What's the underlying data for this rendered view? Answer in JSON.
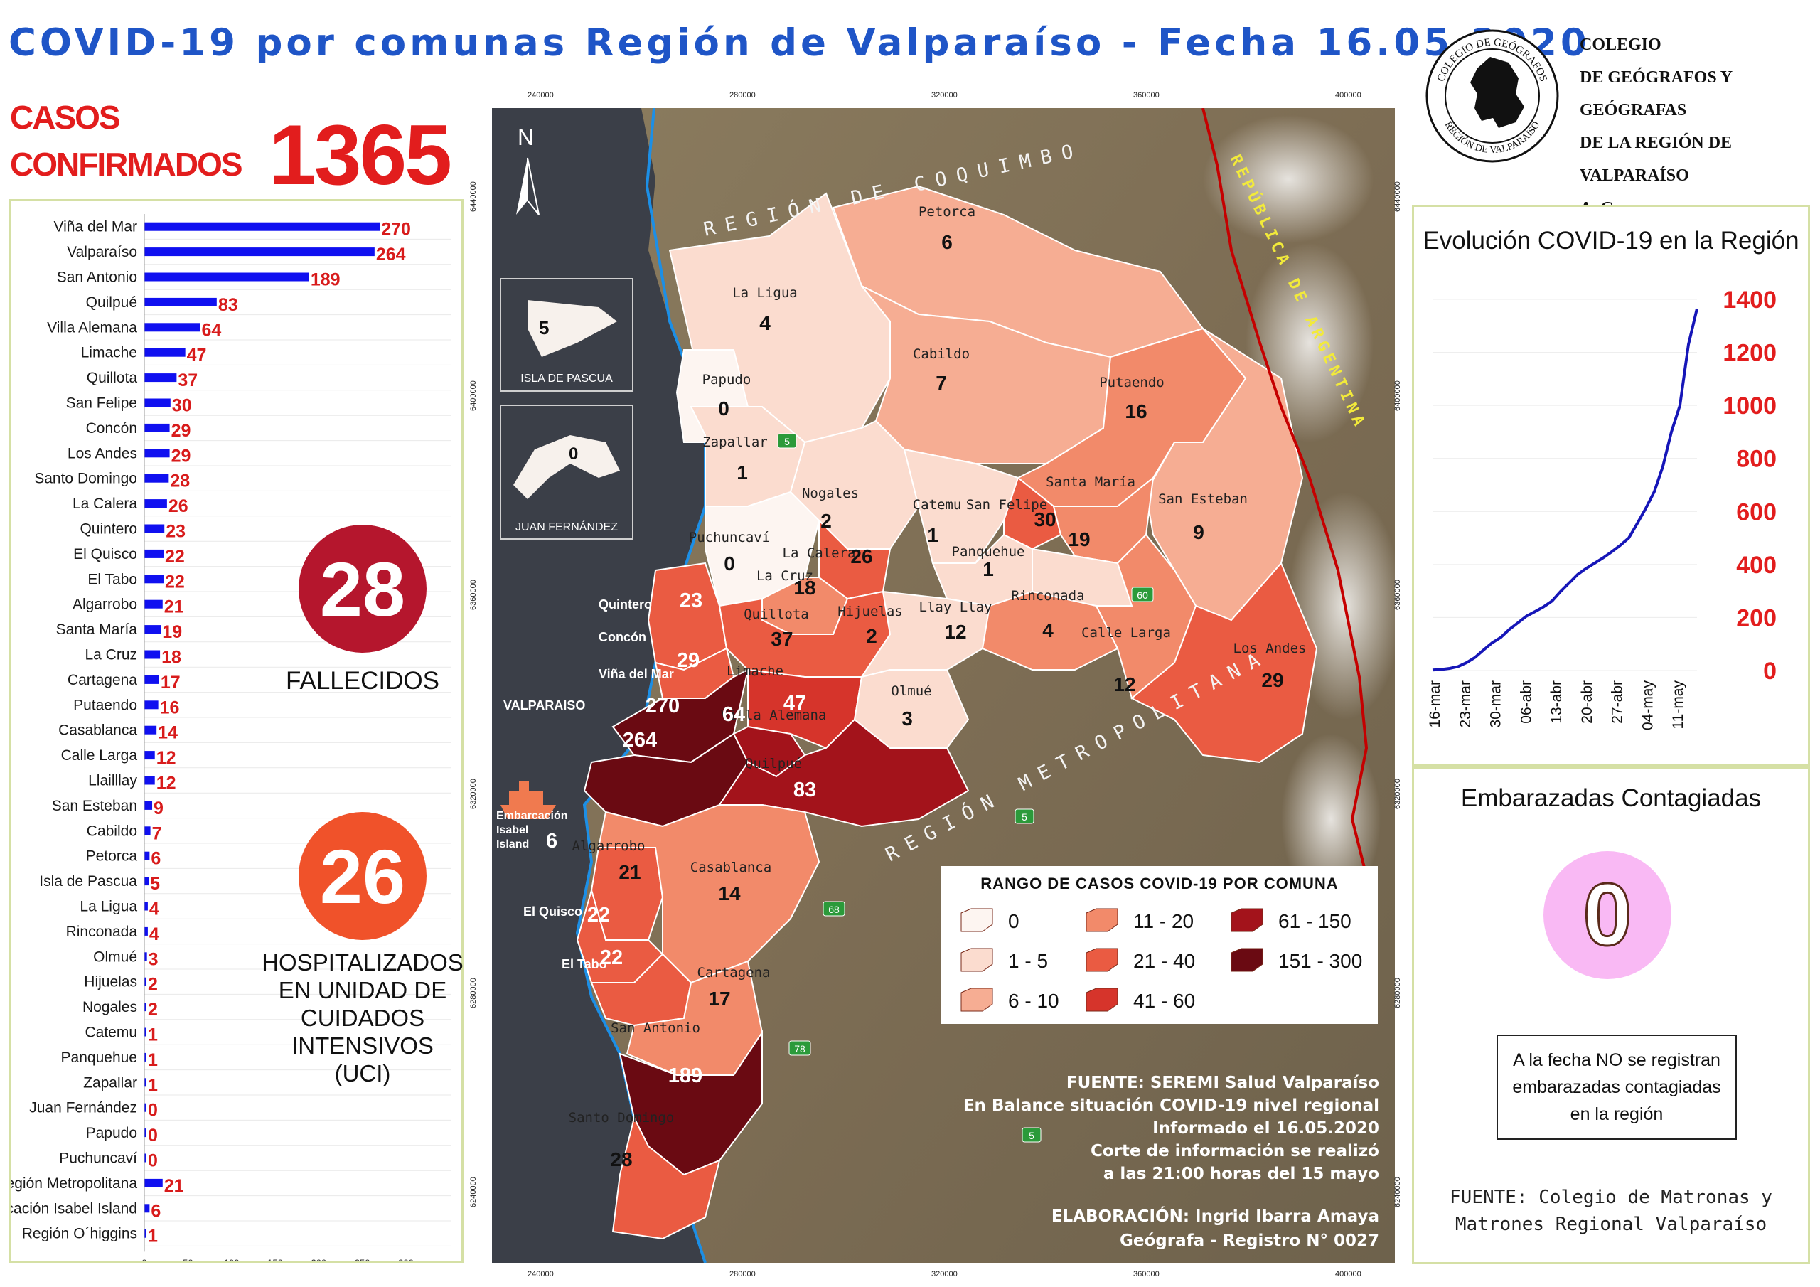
{
  "title": "COVID-19 por comunas Región de Valparaíso - Fecha 16.05.2020",
  "casos": {
    "label_line1": "CASOS",
    "label_line2": "CONFIRMADOS",
    "value": "1365"
  },
  "fallecidos": {
    "value": "28",
    "label": "FALLECIDOS"
  },
  "uci": {
    "value": "26",
    "label_lines": [
      "HOSPITALIZADOS",
      "EN UNIDAD DE",
      "CUIDADOS",
      "INTENSIVOS",
      "(UCI)"
    ]
  },
  "colegio": {
    "lines": [
      "COLEGIO",
      "DE GEÓGRAFOS Y GEÓGRAFAS",
      "DE LA REGIÓN DE VALPARAÍSO",
      "A. G."
    ],
    "seal_top": "COLEGIO DE GEÓGRAFOS",
    "seal_bottom": "REGIÓN DE VALPARAÍSO"
  },
  "colors": {
    "bar": "#1010f0",
    "value": "#d81b1b",
    "title": "#1f55c7",
    "line": "#1616b8"
  },
  "chart_data": [
    {
      "type": "bar",
      "orientation": "horizontal",
      "categories": [
        "Viña del Mar",
        "Valparaíso",
        "San Antonio",
        "Quilpué",
        "Villa Alemana",
        "Limache",
        "Quillota",
        "San Felipe",
        "Concón",
        "Los Andes",
        "Santo Domingo",
        "La Calera",
        "Quintero",
        "El Quisco",
        "El Tabo",
        "Algarrobo",
        "Santa María",
        "La Cruz",
        "Cartagena",
        "Putaendo",
        "Casablanca",
        "Calle Larga",
        "Llailllay",
        "San Esteban",
        "Cabildo",
        "Petorca",
        "Isla de Pascua",
        "La Ligua",
        "Rinconada",
        "Olmué",
        "Hijuelas",
        "Nogales",
        "Catemu",
        "Panquehue",
        "Zapallar",
        "Juan Fernández",
        "Papudo",
        "Puchuncaví",
        "Región Metropolitana",
        "Embarcación Isabel Island",
        "Región O´higgins"
      ],
      "values": [
        270,
        264,
        189,
        83,
        64,
        47,
        37,
        30,
        29,
        29,
        28,
        26,
        23,
        22,
        22,
        21,
        19,
        18,
        17,
        16,
        14,
        12,
        12,
        9,
        7,
        6,
        5,
        4,
        4,
        3,
        2,
        2,
        1,
        1,
        1,
        0,
        0,
        0,
        21,
        6,
        1
      ],
      "xticks": [
        0,
        50,
        100,
        150,
        200,
        250,
        300
      ],
      "xlim": [
        0,
        300
      ]
    },
    {
      "type": "line",
      "title": "Evolución COVID-19 en la Región",
      "x_ticks": [
        "16-mar",
        "23-mar",
        "30-mar",
        "06-abr",
        "13-abr",
        "20-abr",
        "27-abr",
        "04-may",
        "11-may"
      ],
      "yticks": [
        0,
        200,
        400,
        600,
        800,
        1000,
        1200,
        1400
      ],
      "ylim": [
        0,
        1400
      ],
      "x": [
        "16-mar",
        "18-mar",
        "20-mar",
        "22-mar",
        "24-mar",
        "26-mar",
        "28-mar",
        "30-mar",
        "01-abr",
        "03-abr",
        "05-abr",
        "07-abr",
        "09-abr",
        "11-abr",
        "13-abr",
        "15-abr",
        "17-abr",
        "19-abr",
        "21-abr",
        "23-abr",
        "25-abr",
        "27-abr",
        "29-abr",
        "01-may",
        "03-may",
        "05-may",
        "07-may",
        "09-may",
        "11-may",
        "13-may",
        "15-may",
        "16-may"
      ],
      "values": [
        2,
        4,
        8,
        15,
        30,
        50,
        78,
        105,
        125,
        155,
        180,
        205,
        222,
        240,
        262,
        298,
        330,
        362,
        385,
        405,
        425,
        448,
        472,
        500,
        555,
        612,
        675,
        770,
        900,
        1000,
        1230,
        1365
      ]
    }
  ],
  "map": {
    "coords_top": [
      "240000",
      "280000",
      "320000",
      "360000",
      "400000"
    ],
    "coords_side": [
      "6440000",
      "6400000",
      "6360000",
      "6320000",
      "6280000",
      "6240000"
    ],
    "regions": {
      "coquimbo": "REGIÓN DE COQUIMBO",
      "metropolitana": "REGIÓN METROPOLITANA",
      "argentina": "REPÚBLICA DE ARGENTINA"
    },
    "north": "N",
    "insets": [
      {
        "name": "ISLA DE PASCUA",
        "value": "5"
      },
      {
        "name": "JUAN FERNÁNDEZ",
        "value": "0"
      }
    ],
    "routes": [
      "5",
      "5",
      "60",
      "68",
      "78",
      "5"
    ],
    "comunas": [
      {
        "name": "Petorca",
        "value": "6"
      },
      {
        "name": "La Ligua",
        "value": "4"
      },
      {
        "name": "Cabildo",
        "value": "7"
      },
      {
        "name": "Papudo",
        "value": "0"
      },
      {
        "name": "Zapallar",
        "value": "1"
      },
      {
        "name": "Putaendo",
        "value": "16"
      },
      {
        "name": "Nogales",
        "value": "2"
      },
      {
        "name": "Catemu",
        "value": "1"
      },
      {
        "name": "San Felipe",
        "value": "30"
      },
      {
        "name": "Santa María",
        "value": "19"
      },
      {
        "name": "San Esteban",
        "value": "9"
      },
      {
        "name": "Puchuncaví",
        "value": "0"
      },
      {
        "name": "La Calera",
        "value": "26"
      },
      {
        "name": "Panquehue",
        "value": "1"
      },
      {
        "name": "La Cruz",
        "value": "18"
      },
      {
        "name": "Quintero",
        "value": "23"
      },
      {
        "name": "Quillota",
        "value": "37"
      },
      {
        "name": "Hijuelas",
        "value": "2"
      },
      {
        "name": "Llay Llay",
        "value": "12"
      },
      {
        "name": "Rinconada",
        "value": "4"
      },
      {
        "name": "Calle Larga",
        "value": "12"
      },
      {
        "name": "Los Andes",
        "value": "29"
      },
      {
        "name": "Concón",
        "value": "29"
      },
      {
        "name": "Viña del Mar",
        "value": "270"
      },
      {
        "name": "Limache",
        "value": "47"
      },
      {
        "name": "Olmué",
        "value": "3"
      },
      {
        "name": "VALPARAISO",
        "value": "264"
      },
      {
        "name": "Villa Alemana",
        "value": "64"
      },
      {
        "name": "Quilpué",
        "value": "83"
      },
      {
        "name": "Algarrobo",
        "value": "21"
      },
      {
        "name": "Casablanca",
        "value": "14"
      },
      {
        "name": "El Quisco",
        "value": "22"
      },
      {
        "name": "El Tabo",
        "value": "22"
      },
      {
        "name": "Cartagena",
        "value": "17"
      },
      {
        "name": "San Antonio",
        "value": "189"
      },
      {
        "name": "Santo Domingo",
        "value": "28"
      },
      {
        "name": "Embarcación Isabel Island",
        "value": "6"
      }
    ],
    "legend": {
      "title": "RANGO DE CASOS COVID-19 POR COMUNA",
      "items": [
        {
          "label": "0",
          "color": "#fdf5f1"
        },
        {
          "label": "1 - 5",
          "color": "#fbdccf"
        },
        {
          "label": "6 - 10",
          "color": "#f6ad93"
        },
        {
          "label": "11 - 20",
          "color": "#f28a6a"
        },
        {
          "label": "21 - 40",
          "color": "#ea5b42"
        },
        {
          "label": "41 - 60",
          "color": "#d6342b"
        },
        {
          "label": "61 - 150",
          "color": "#a3131b"
        },
        {
          "label": "151 - 300",
          "color": "#6a0a12"
        }
      ]
    },
    "source_lines": [
      "FUENTE: SEREMI Salud Valparaíso",
      "En Balance situación COVID-19 nivel regional",
      "Informado el 16.05.2020",
      "Corte de información se realizó",
      "a las 21:00 horas del 15  mayo"
    ],
    "elaboracion_lines": [
      "ELABORACIÓN: Ingrid Ibarra Amaya",
      "Geógrafa - Registro N° 0027"
    ]
  },
  "embarazadas": {
    "title": "Embarazadas Contagiadas",
    "value": "0",
    "note_lines": [
      "A la fecha NO se registran",
      "embarazadas contagiadas",
      "en la región"
    ],
    "source_lines": [
      "FUENTE: Colegio de Matronas y",
      "Matrones Regional Valparaíso"
    ]
  }
}
